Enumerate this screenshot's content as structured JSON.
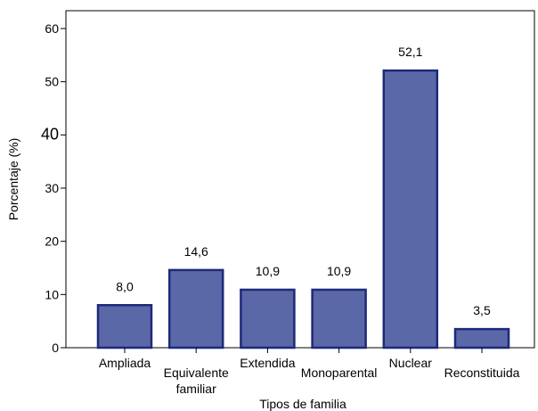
{
  "chart_data": {
    "type": "bar",
    "title": "",
    "xlabel": "Tipos de familia",
    "ylabel": "Porcentaje (%)",
    "ylim": [
      0,
      60
    ],
    "yticks": [
      "0",
      "10",
      "20",
      "30",
      "40",
      "50",
      "60"
    ],
    "categories": [
      [
        "Ampliada"
      ],
      [
        "Equivalente",
        "familiar"
      ],
      [
        "Extendida"
      ],
      [
        "Monoparental"
      ],
      [
        "Nuclear"
      ],
      [
        "Reconstituida"
      ]
    ],
    "values": [
      8.0,
      14.6,
      10.9,
      10.9,
      52.1,
      3.5
    ],
    "data_labels": [
      "8,0",
      "14,6",
      "10,9",
      "10,9",
      "52,1",
      "3,5"
    ],
    "grid": false,
    "bar_fill": "#5a68a8",
    "bar_stroke": "#1e2a78"
  }
}
